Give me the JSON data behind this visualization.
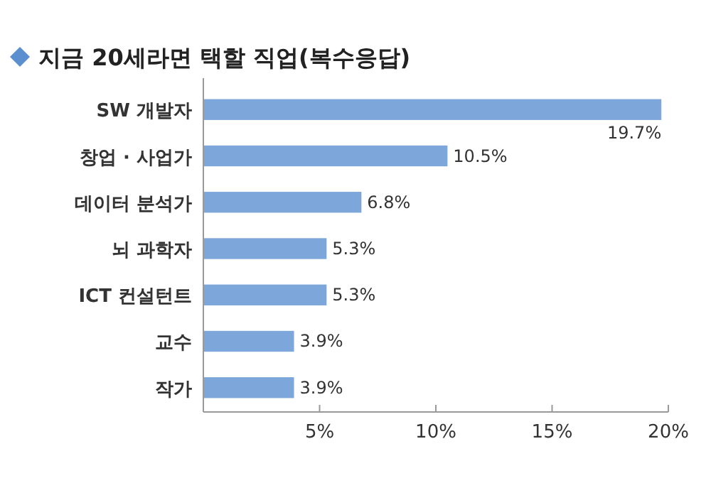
{
  "chart_data": {
    "type": "bar",
    "orientation": "horizontal",
    "title": "지금 20세라면 택할 직업(복수응답)",
    "categories": [
      "SW 개발자",
      "창업 · 사업가",
      "데이터 분석가",
      "뇌 과학자",
      "ICT 컨설턴트",
      "교수",
      "작가"
    ],
    "values": [
      19.7,
      10.5,
      6.8,
      5.3,
      5.3,
      3.9,
      3.9
    ],
    "value_labels": [
      "19.7%",
      "10.5%",
      "6.8%",
      "5.3%",
      "5.3%",
      "3.9%",
      "3.9%"
    ],
    "color": "#7da7da",
    "xlim": [
      0,
      20
    ],
    "xticks": [
      {
        "value": 5,
        "label": "5%"
      },
      {
        "value": 10,
        "label": "10%"
      },
      {
        "value": 15,
        "label": "15%"
      },
      {
        "value": 20,
        "label": "20%"
      }
    ],
    "grid": false
  }
}
